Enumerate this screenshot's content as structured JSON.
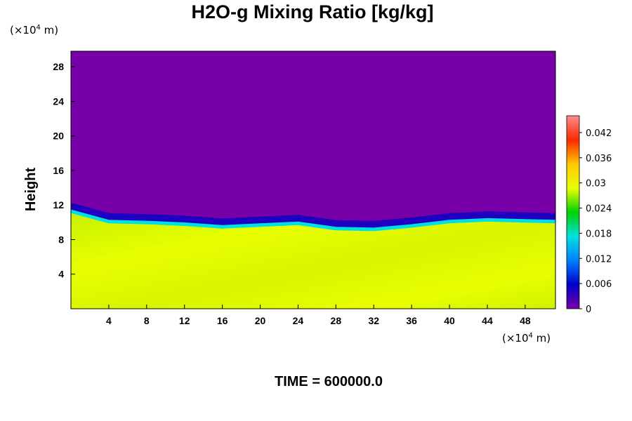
{
  "chart_data": {
    "type": "heatmap",
    "title": "H2O-g Mixing Ratio [kg/kg]",
    "ylabel": "Height",
    "x_unit": {
      "prefix": "(×10",
      "exp": "4",
      "suffix": " m)"
    },
    "y_unit": {
      "prefix": "(×10",
      "exp": "4",
      "suffix": " m)"
    },
    "xlim": [
      0,
      51.2
    ],
    "ylim": [
      0,
      29.8
    ],
    "x_ticks": [
      4,
      8,
      12,
      16,
      20,
      24,
      28,
      32,
      36,
      40,
      44,
      48
    ],
    "y_ticks": [
      4,
      8,
      12,
      16,
      20,
      24,
      28
    ],
    "colorbar": {
      "range": [
        0,
        0.046
      ],
      "ticks": [
        0,
        0.006,
        0.012,
        0.018,
        0.024,
        0.03,
        0.036,
        0.042
      ],
      "tick_labels": [
        "0",
        "0.006",
        "0.012",
        "0.018",
        "0.024",
        "0.03",
        "0.036",
        "0.042"
      ],
      "colors": [
        "#7800a8",
        "#0000c8",
        "#0080ff",
        "#00e0e0",
        "#00d000",
        "#e8ff00",
        "#ffc800",
        "#ff2800",
        "#ff8c8c"
      ]
    },
    "interface_height": [
      11.2,
      10.0,
      9.9,
      9.7,
      9.4,
      9.6,
      9.8,
      9.2,
      9.1,
      9.5,
      10.0,
      10.2,
      10.0
    ],
    "interface_x": [
      0,
      4,
      8,
      12,
      16,
      20,
      24,
      28,
      32,
      36,
      40,
      44,
      51.2
    ],
    "lower_value": 0.031,
    "upper_value": 0.0,
    "grid": false,
    "footer": "TIME = 600000.0"
  }
}
